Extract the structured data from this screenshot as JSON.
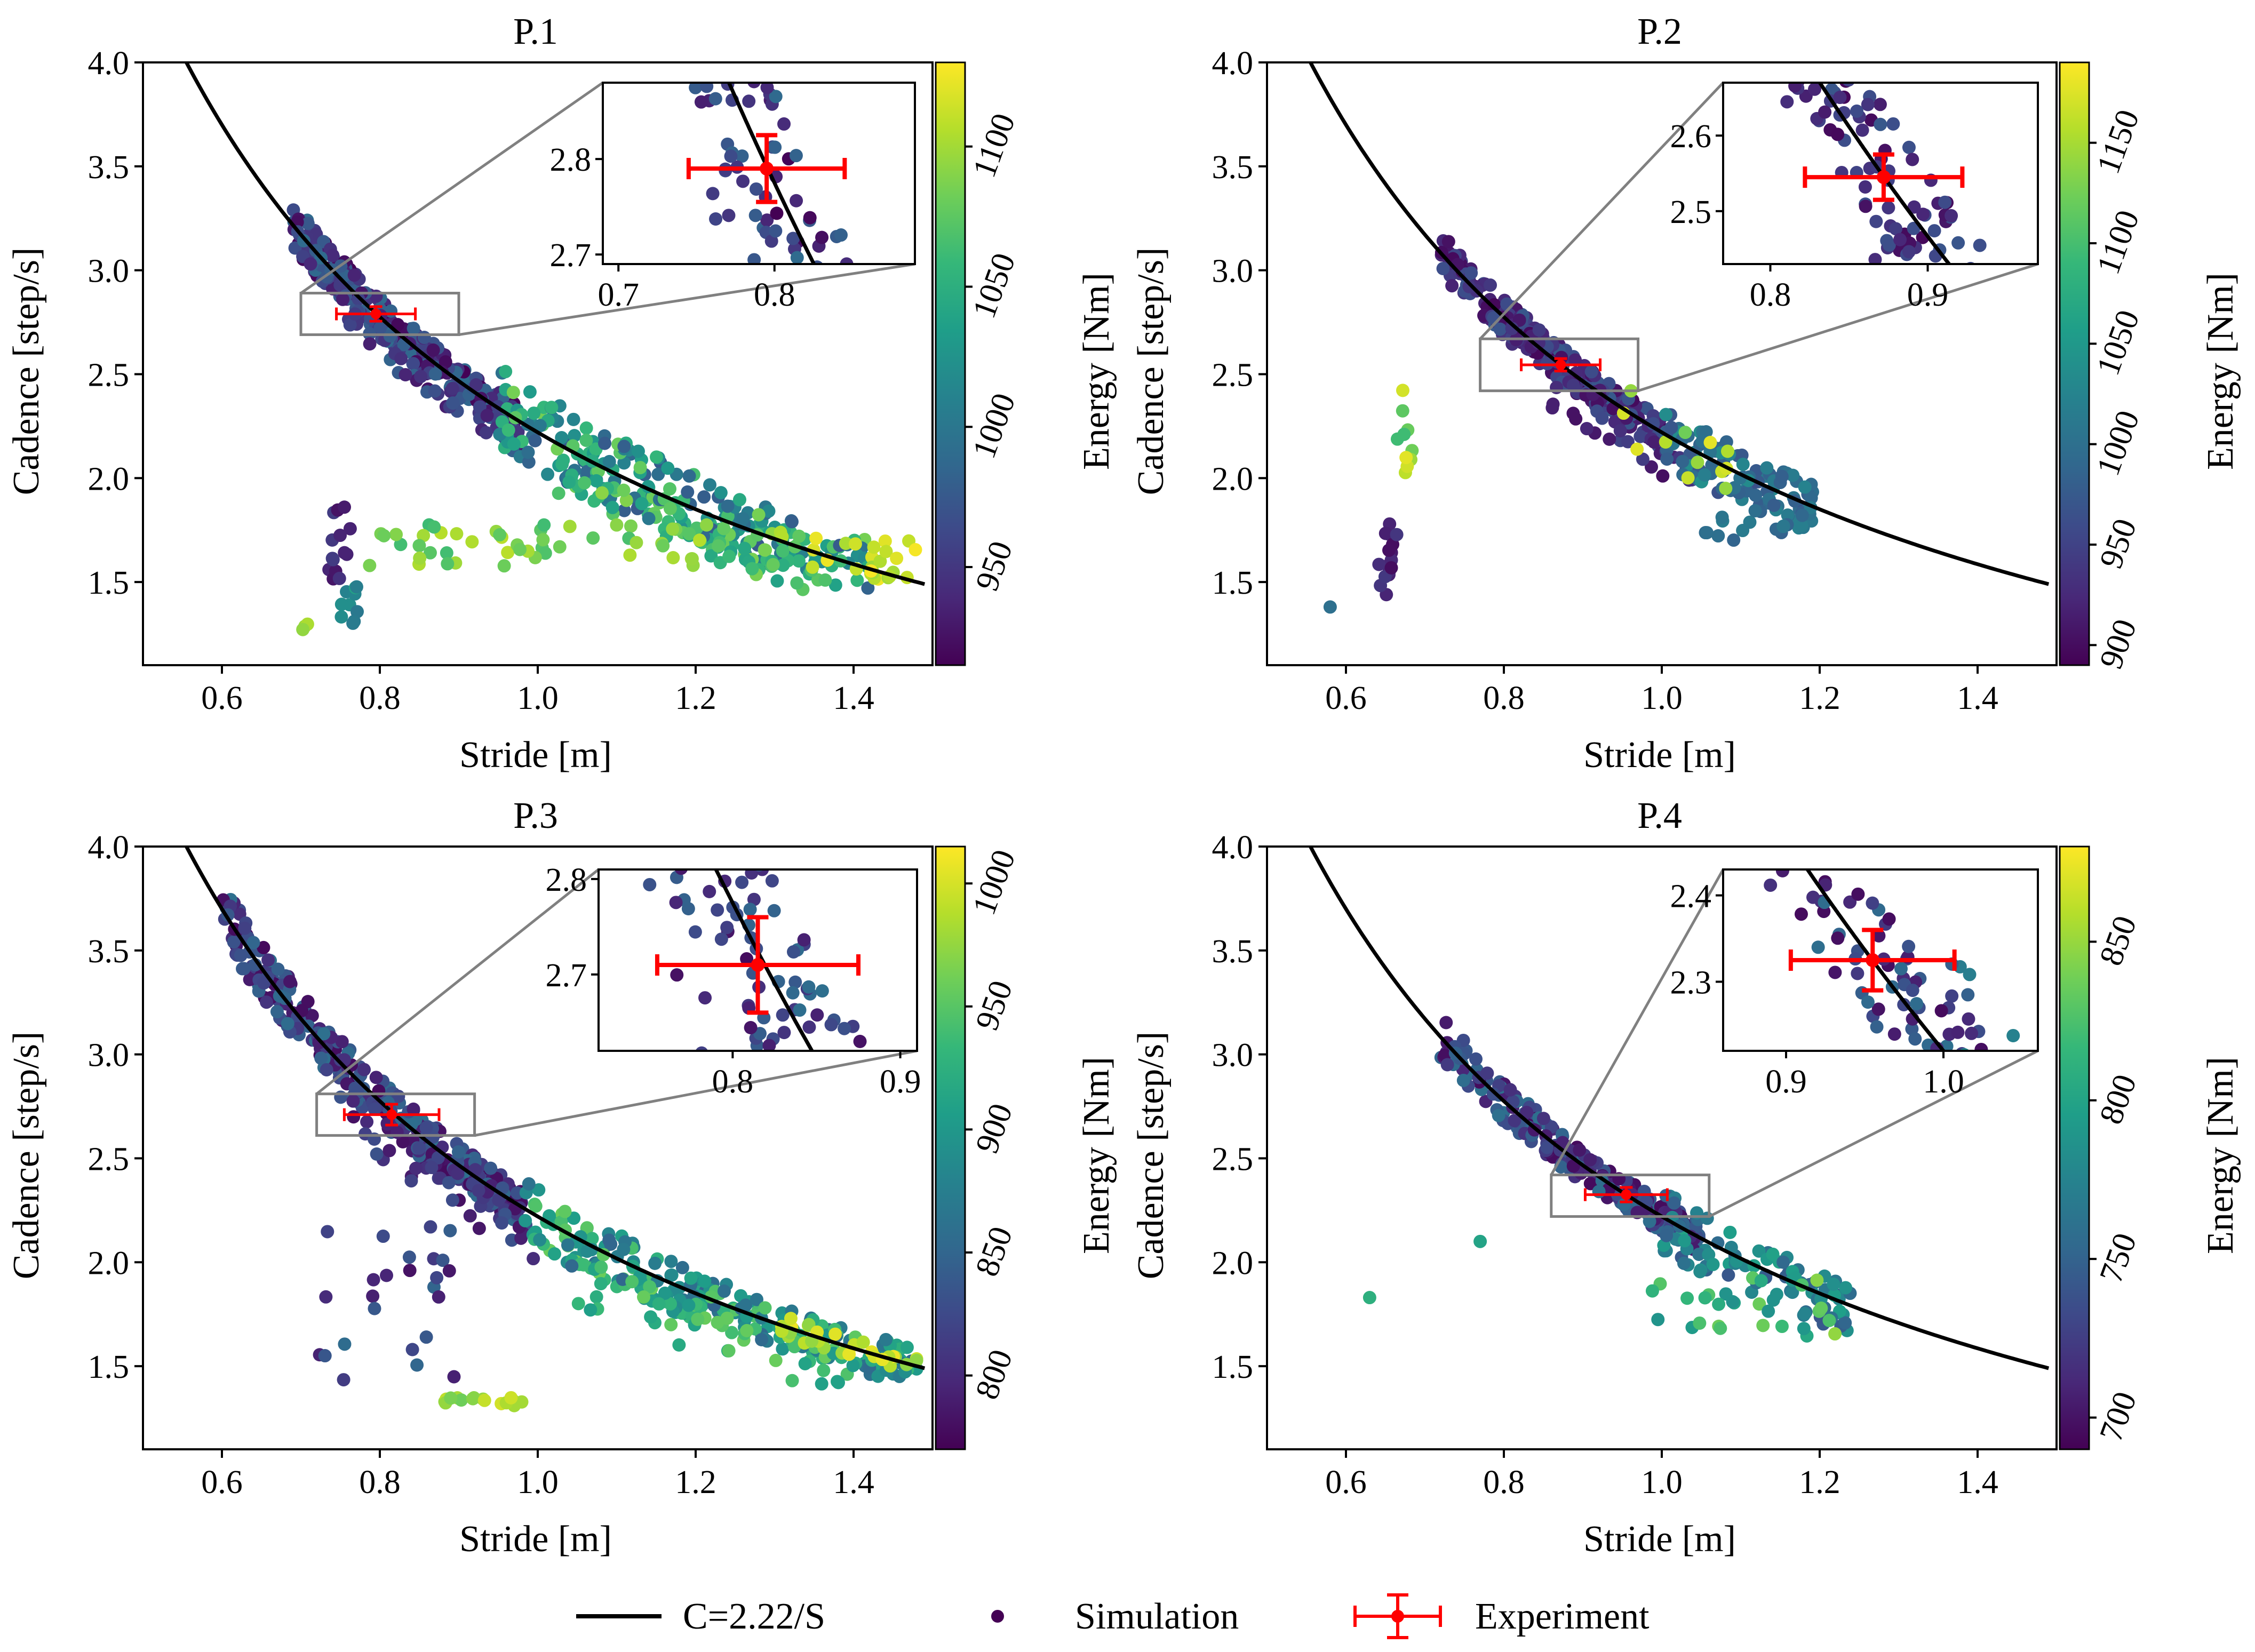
{
  "legend": {
    "placement": "bottom-center",
    "curve": "C=2.22/S",
    "simulation": "Simulation",
    "experiment": "Experiment"
  },
  "colors": {
    "curve": "#000000",
    "experiment": "#ff0000",
    "simulation_legend": "#440154",
    "inset_frame": "#808080",
    "colormap": [
      "#440154",
      "#482878",
      "#3e4989",
      "#31688e",
      "#26828e",
      "#1f9e89",
      "#35b779",
      "#6ece58",
      "#b5de2b",
      "#fde725"
    ]
  },
  "chart_data": [
    {
      "type": "scatter",
      "id": "p1",
      "title": "P.1",
      "xlabel": "Stride [m]",
      "ylabel": "Cadence [step/s]",
      "xlim": [
        0.5,
        1.5
      ],
      "ylim": [
        1.1,
        4.0
      ],
      "xticks": [
        "0.6",
        "0.8",
        "1.0",
        "1.2",
        "1.4"
      ],
      "yticks": [
        "1.5",
        "2.0",
        "2.5",
        "3.0",
        "3.5",
        "4.0"
      ],
      "curve": {
        "label": "C=2.22/S",
        "k": 2.22,
        "x_range": [
          0.5,
          1.49
        ]
      },
      "colorbar": {
        "label": "Energy [Nm]",
        "vmin": 915,
        "vmax": 1130,
        "ticks": [
          "950",
          "1000",
          "1050",
          "1100"
        ]
      },
      "experiment": {
        "x": 0.795,
        "y": 2.79,
        "xerr": 0.05,
        "yerr": 0.035
      },
      "zoom_box": {
        "x": [
          0.7,
          0.9
        ],
        "y": [
          2.69,
          2.89
        ]
      },
      "inset": {
        "placement": "top-right",
        "xlim": [
          0.69,
          0.89
        ],
        "ylim": [
          2.69,
          2.88
        ],
        "xticks": [
          "0.7",
          "0.8"
        ],
        "yticks": [
          "2.7",
          "2.8"
        ]
      },
      "clusters": [
        {
          "x": [
            0.69,
            0.97
          ],
          "y_factor": [
            0.965,
            1.035
          ],
          "e": [
            915,
            990
          ],
          "n": 260
        },
        {
          "x": [
            0.75,
            0.98
          ],
          "y_factor": [
            0.93,
            0.99
          ],
          "e": [
            920,
            985
          ],
          "n": 45
        },
        {
          "x": [
            0.95,
            1.42
          ],
          "y_factor": [
            0.92,
            1.09
          ],
          "e": [
            975,
            1085
          ],
          "n": 240
        },
        {
          "x": [
            1.0,
            1.35
          ],
          "y_factor": [
            0.88,
            0.98
          ],
          "e": [
            1035,
            1095
          ],
          "n": 45
        },
        {
          "x": [
            0.78,
            1.32
          ],
          "y": [
            1.56,
            1.78
          ],
          "e": [
            1060,
            1110
          ],
          "n": 60
        },
        {
          "x": [
            1.34,
            1.48
          ],
          "y": [
            1.5,
            1.72
          ],
          "e": [
            1095,
            1130
          ],
          "n": 25
        },
        {
          "x": [
            0.735,
            0.765
          ],
          "y": [
            1.45,
            1.88
          ],
          "e": [
            925,
            960
          ],
          "n": 14
        },
        {
          "x": [
            0.75,
            0.78
          ],
          "y": [
            1.3,
            1.5
          ],
          "e": [
            975,
            1040
          ],
          "n": 10
        },
        {
          "x": [
            0.7,
            0.72
          ],
          "y": [
            1.27,
            1.3
          ],
          "e": [
            1090,
            1110
          ],
          "n": 3
        }
      ]
    },
    {
      "type": "scatter",
      "id": "p2",
      "title": "P.2",
      "xlabel": "Stride [m]",
      "ylabel": "Cadence [step/s]",
      "xlim": [
        0.5,
        1.5
      ],
      "ylim": [
        1.1,
        4.0
      ],
      "xticks": [
        "0.6",
        "0.8",
        "1.0",
        "1.2",
        "1.4"
      ],
      "yticks": [
        "1.5",
        "2.0",
        "2.5",
        "3.0",
        "3.5",
        "4.0"
      ],
      "curve": {
        "label": "C=2.22/S",
        "k": 2.22,
        "x_range": [
          0.5,
          1.49
        ]
      },
      "colorbar": {
        "label": "Energy [Nm]",
        "vmin": 890,
        "vmax": 1190,
        "ticks": [
          "900",
          "950",
          "1000",
          "1050",
          "1100",
          "1150"
        ]
      },
      "experiment": {
        "x": 0.872,
        "y": 2.545,
        "xerr": 0.05,
        "yerr": 0.03
      },
      "zoom_box": {
        "x": [
          0.77,
          0.97
        ],
        "y": [
          2.42,
          2.67
        ]
      },
      "inset": {
        "placement": "top-right",
        "xlim": [
          0.77,
          0.97
        ],
        "ylim": [
          2.43,
          2.67
        ],
        "xticks": [
          "0.8",
          "0.9"
        ],
        "yticks": [
          "2.5",
          "2.6"
        ]
      },
      "clusters": [
        {
          "x": [
            0.72,
            1.0
          ],
          "y_factor": [
            0.965,
            1.035
          ],
          "e": [
            895,
            975
          ],
          "n": 240
        },
        {
          "x": [
            0.85,
            1.05
          ],
          "y_factor": [
            0.9,
            0.99
          ],
          "e": [
            900,
            960
          ],
          "n": 35
        },
        {
          "x": [
            1.0,
            1.2
          ],
          "y_factor": [
            0.93,
            1.06
          ],
          "e": [
            960,
            1040
          ],
          "n": 110
        },
        {
          "x": [
            0.93,
            1.1
          ],
          "y_factor": [
            0.93,
            1.05
          ],
          "e": [
            1120,
            1180
          ],
          "n": 12
        },
        {
          "x": [
            1.05,
            1.18
          ],
          "y": [
            1.7,
            1.85
          ],
          "e": [
            980,
            1020
          ],
          "n": 15
        },
        {
          "x": [
            0.64,
            0.665
          ],
          "y": [
            1.42,
            1.8
          ],
          "e": [
            900,
            940
          ],
          "n": 16
        },
        {
          "x": [
            0.665,
            0.685
          ],
          "y": [
            1.85,
            2.5
          ],
          "e": [
            1080,
            1180
          ],
          "n": 10
        },
        {
          "x": [
            0.58,
            0.58
          ],
          "y": [
            1.38,
            1.38
          ],
          "e": [
            1000,
            1000
          ],
          "n": 1
        }
      ]
    },
    {
      "type": "scatter",
      "id": "p3",
      "title": "P.3",
      "xlabel": "Stride [m]",
      "ylabel": "Cadence [step/s]",
      "xlim": [
        0.5,
        1.5
      ],
      "ylim": [
        1.1,
        4.0
      ],
      "xticks": [
        "0.6",
        "0.8",
        "1.0",
        "1.2",
        "1.4"
      ],
      "yticks": [
        "1.5",
        "2.0",
        "2.5",
        "3.0",
        "3.5",
        "4.0"
      ],
      "curve": {
        "label": "C=2.22/S",
        "k": 2.22,
        "x_range": [
          0.5,
          1.49
        ]
      },
      "colorbar": {
        "label": "Energy [Nm]",
        "vmin": 770,
        "vmax": 1015,
        "ticks": [
          "800",
          "850",
          "900",
          "950",
          "1000"
        ]
      },
      "experiment": {
        "x": 0.815,
        "y": 2.71,
        "xerr": 0.06,
        "yerr": 0.05
      },
      "zoom_box": {
        "x": [
          0.72,
          0.92
        ],
        "y": [
          2.61,
          2.81
        ]
      },
      "inset": {
        "placement": "top-right",
        "xlim": [
          0.72,
          0.91
        ],
        "ylim": [
          2.62,
          2.81
        ],
        "xticks": [
          "0.8",
          "0.9"
        ],
        "yticks": [
          "2.7",
          "2.8"
        ]
      },
      "clusters": [
        {
          "x": [
            0.6,
            0.98
          ],
          "y_factor": [
            0.96,
            1.04
          ],
          "e": [
            775,
            860
          ],
          "n": 320
        },
        {
          "x": [
            0.75,
            1.0
          ],
          "y_factor": [
            0.9,
            0.99
          ],
          "e": [
            780,
            840
          ],
          "n": 50
        },
        {
          "x": [
            0.98,
            1.48
          ],
          "y_factor": [
            0.93,
            1.06
          ],
          "e": [
            850,
            960
          ],
          "n": 230
        },
        {
          "x": [
            1.05,
            1.4
          ],
          "y_factor": [
            0.85,
            0.97
          ],
          "e": [
            900,
            960
          ],
          "n": 40
        },
        {
          "x": [
            1.3,
            1.48
          ],
          "y_factor": [
            0.97,
            1.03
          ],
          "e": [
            970,
            1010
          ],
          "n": 30
        },
        {
          "x": [
            0.72,
            0.9
          ],
          "y": [
            1.4,
            2.18
          ],
          "e": [
            780,
            860
          ],
          "n": 25
        },
        {
          "x": [
            0.88,
            0.98
          ],
          "y": [
            1.31,
            1.35
          ],
          "e": [
            950,
            1000
          ],
          "n": 16
        }
      ]
    },
    {
      "type": "scatter",
      "id": "p4",
      "title": "P.4",
      "xlabel": "Stride [m]",
      "ylabel": "Cadence [step/s]",
      "xlim": [
        0.5,
        1.5
      ],
      "ylim": [
        1.1,
        4.0
      ],
      "xticks": [
        "0.6",
        "0.8",
        "1.0",
        "1.2",
        "1.4"
      ],
      "yticks": [
        "1.5",
        "2.0",
        "2.5",
        "3.0",
        "3.5",
        "4.0"
      ],
      "curve": {
        "label": "C=2.22/S",
        "k": 2.22,
        "x_range": [
          0.5,
          1.49
        ]
      },
      "colorbar": {
        "label": "Energy [Nm]",
        "vmin": 690,
        "vmax": 880,
        "ticks": [
          "700",
          "750",
          "800",
          "850"
        ]
      },
      "experiment": {
        "x": 0.955,
        "y": 2.325,
        "xerr": 0.052,
        "yerr": 0.035
      },
      "zoom_box": {
        "x": [
          0.86,
          1.06
        ],
        "y": [
          2.22,
          2.42
        ]
      },
      "inset": {
        "placement": "top-right",
        "xlim": [
          0.86,
          1.06
        ],
        "ylim": [
          2.22,
          2.43
        ],
        "xticks": [
          "0.9",
          "1.0"
        ],
        "yticks": [
          "2.3",
          "2.4"
        ]
      },
      "clusters": [
        {
          "x": [
            0.72,
            1.05
          ],
          "y_factor": [
            0.965,
            1.035
          ],
          "e": [
            695,
            760
          ],
          "n": 220
        },
        {
          "x": [
            1.0,
            1.24
          ],
          "y_factor": [
            0.92,
            1.06
          ],
          "e": [
            740,
            800
          ],
          "n": 90
        },
        {
          "x": [
            0.98,
            1.24
          ],
          "y": [
            1.62,
            1.95
          ],
          "e": [
            780,
            850
          ],
          "n": 30
        },
        {
          "x": [
            0.63,
            0.63
          ],
          "y": [
            1.83,
            1.83
          ],
          "e": [
            810,
            810
          ],
          "n": 1
        },
        {
          "x": [
            0.77,
            0.77
          ],
          "y": [
            2.1,
            2.1
          ],
          "e": [
            800,
            800
          ],
          "n": 1
        }
      ]
    }
  ]
}
